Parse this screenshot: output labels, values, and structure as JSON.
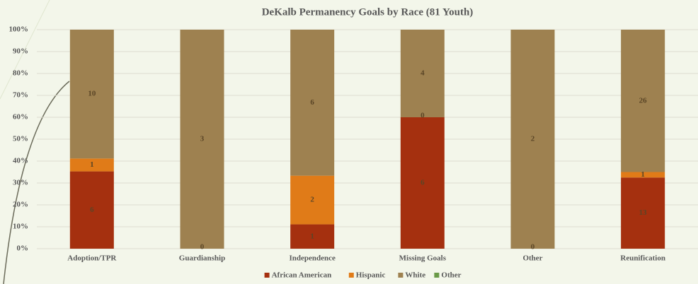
{
  "chart_data": {
    "type": "bar",
    "stacking": "percent",
    "title": "DeKalb Permanency Goals by Race (81 Youth)",
    "categories": [
      "Adoption/TPR",
      "Guardianship",
      "Independence",
      "Missing Goals",
      "Other",
      "Reunification"
    ],
    "series": [
      {
        "name": "African American",
        "color": "#a5300f",
        "values": [
          6,
          0,
          1,
          6,
          0,
          13
        ]
      },
      {
        "name": "Hispanic",
        "color": "#e07b18",
        "values": [
          1,
          null,
          2,
          0,
          null,
          1
        ]
      },
      {
        "name": "White",
        "color": "#9e8150",
        "values": [
          10,
          3,
          6,
          4,
          2,
          26
        ]
      },
      {
        "name": "Other",
        "color": "#6a9a48",
        "values": [
          null,
          null,
          null,
          null,
          null,
          null
        ]
      }
    ],
    "ylim": [
      0,
      100
    ],
    "yticks": [
      {
        "value": 0,
        "label": "0%"
      },
      {
        "value": 10,
        "label": "10%"
      },
      {
        "value": 20,
        "label": "20%"
      },
      {
        "value": 30,
        "label": "30%"
      },
      {
        "value": 40,
        "label": "40%"
      },
      {
        "value": 50,
        "label": "50%"
      },
      {
        "value": 60,
        "label": "60%"
      },
      {
        "value": 70,
        "label": "70%"
      },
      {
        "value": 80,
        "label": "80%"
      },
      {
        "value": 90,
        "label": "90%"
      },
      {
        "value": 100,
        "label": "100%"
      }
    ],
    "grid": true,
    "legend": "bottom"
  }
}
